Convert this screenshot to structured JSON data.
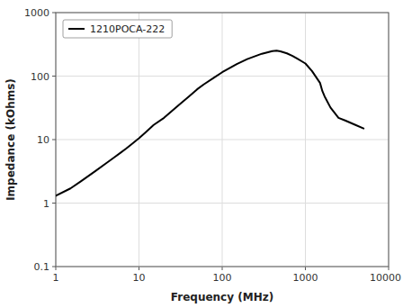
{
  "chart_data": {
    "type": "line",
    "xlabel": "Frequency (MHz)",
    "ylabel": "Impedance (kOhms)",
    "x": [
      1,
      1.5,
      2,
      3,
      4,
      5,
      6,
      7,
      8,
      10,
      12,
      15,
      20,
      30,
      40,
      50,
      60,
      80,
      100,
      150,
      200,
      300,
      400,
      450,
      500,
      600,
      700,
      800,
      1000,
      1200,
      1500,
      1600,
      1700,
      2000,
      2500,
      3000,
      4000,
      5000
    ],
    "series": [
      {
        "name": "1210POCA-222",
        "color": "#000000",
        "values": [
          1.3,
          1.7,
          2.2,
          3.2,
          4.2,
          5.2,
          6.2,
          7.2,
          8.3,
          10.5,
          13,
          17,
          22,
          35,
          48,
          62,
          74,
          95,
          115,
          155,
          185,
          225,
          248,
          252,
          245,
          228,
          208,
          188,
          158,
          120,
          78,
          58,
          48,
          32,
          22,
          20,
          17,
          15
        ]
      }
    ],
    "xlim": [
      1,
      10000
    ],
    "ylim": [
      0.1,
      1000
    ],
    "xticks": [
      1,
      10,
      100,
      1000,
      10000
    ],
    "yticks": [
      0.1,
      1,
      10,
      100,
      1000
    ],
    "log": true,
    "grid": true,
    "legend": "upper left"
  }
}
